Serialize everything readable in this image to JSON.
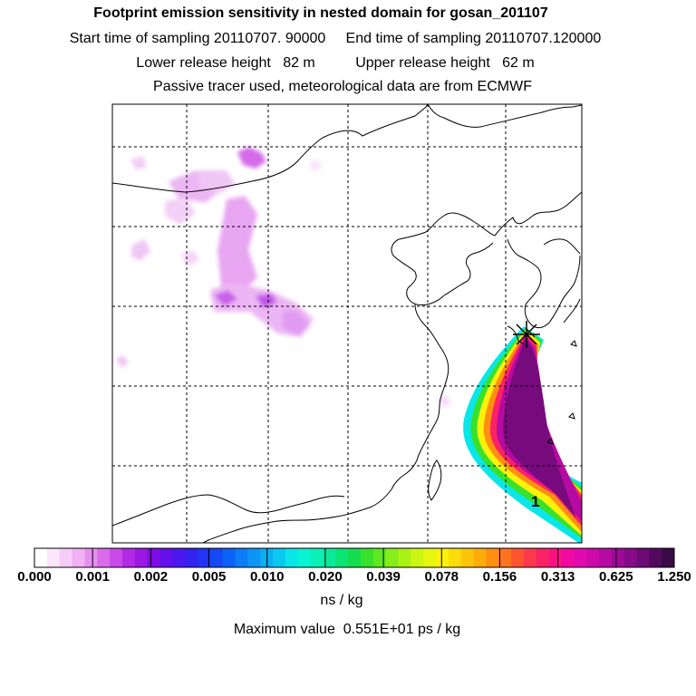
{
  "title": "Footprint emission sensitivity in nested domain for gosan_201107",
  "sampling": {
    "start_label": "Start time of sampling",
    "start_value": "20110707. 90000",
    "end_label": "End time of sampling",
    "end_value": "20110707.120000"
  },
  "release": {
    "lower_label": "Lower release height",
    "lower_value": "82 m",
    "upper_label": "Upper release height",
    "upper_value": "62 m"
  },
  "note": "Passive tracer used, meteorological data are from ECMWF",
  "map_label": "1",
  "colorbar": {
    "ticks": [
      "0.000",
      "0.001",
      "0.002",
      "0.005",
      "0.010",
      "0.020",
      "0.039",
      "0.078",
      "0.156",
      "0.313",
      "0.625",
      "1.250"
    ],
    "colors": [
      "#ffffff",
      "#fbe6fb",
      "#f6cdf7",
      "#f0b2f3",
      "#e68ff0",
      "#da6cec",
      "#c84ae8",
      "#b22ae6",
      "#9a17e4",
      "#7e0de6",
      "#6510ea",
      "#4c17ee",
      "#3322f0",
      "#2234f3",
      "#1548f6",
      "#0a62f8",
      "#0a7cf8",
      "#0c95f5",
      "#0aaff2",
      "#0ac8ef",
      "#0ae6e8",
      "#0af3d2",
      "#0af0b6",
      "#0aea96",
      "#0ae474",
      "#14dd4f",
      "#38e22c",
      "#5ee81f",
      "#86ee1a",
      "#aaf216",
      "#ccf512",
      "#e6f60e",
      "#fbf10a",
      "#fcdc0a",
      "#fdc50a",
      "#feac0a",
      "#fe900f",
      "#fe7320",
      "#fe5530",
      "#fd3a4b",
      "#fc2266",
      "#fb1282",
      "#f20aa0",
      "#e00aae",
      "#cc0aaa",
      "#b60aa2",
      "#9e0a98",
      "#860a8a",
      "#6c0a76",
      "#520a5e",
      "#3a0a46"
    ],
    "units": "ns / kg"
  },
  "max_value_text": "Maximum value  0.551E+01 ps / kg"
}
